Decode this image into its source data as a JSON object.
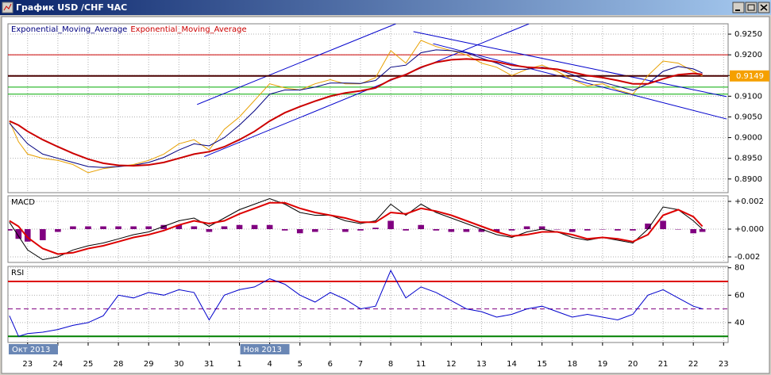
{
  "window_title": "График USD /CHF  ЧАС",
  "x_axis": {
    "x": [
      -0.6,
      -0.3,
      0,
      0.5,
      1,
      1.5,
      2,
      2.5,
      3,
      3.5,
      4,
      4.5,
      5,
      5.5,
      6,
      6.5,
      7,
      7.5,
      8,
      8.5,
      9,
      9.5,
      10,
      10.5,
      11,
      11.5,
      12,
      12.5,
      13,
      13.5,
      14,
      14.5,
      15,
      15.5,
      16,
      16.5,
      17,
      17.5,
      18,
      18.5,
      19,
      19.5,
      20,
      20.5,
      21,
      21.5,
      22,
      22.3
    ],
    "xlim": [
      -0.65,
      23.15
    ],
    "xticks": [
      {
        "value": 0,
        "label": "23"
      },
      {
        "value": 1,
        "label": "24"
      },
      {
        "value": 2,
        "label": "25"
      },
      {
        "value": 3,
        "label": "28"
      },
      {
        "value": 4,
        "label": "29"
      },
      {
        "value": 5,
        "label": "30"
      },
      {
        "value": 6,
        "label": "31"
      },
      {
        "value": 7,
        "label": "1"
      },
      {
        "value": 8,
        "label": "4"
      },
      {
        "value": 9,
        "label": "5"
      },
      {
        "value": 10,
        "label": "6"
      },
      {
        "value": 11,
        "label": "7"
      },
      {
        "value": 12,
        "label": "8"
      },
      {
        "value": 13,
        "label": "11"
      },
      {
        "value": 14,
        "label": "12"
      },
      {
        "value": 15,
        "label": "13"
      },
      {
        "value": 16,
        "label": "14"
      },
      {
        "value": 17,
        "label": "15"
      },
      {
        "value": 18,
        "label": "18"
      },
      {
        "value": 19,
        "label": "19"
      },
      {
        "value": 20,
        "label": "20"
      },
      {
        "value": 21,
        "label": "21"
      },
      {
        "value": 22,
        "label": "22"
      },
      {
        "value": 23,
        "label": "23"
      }
    ],
    "month_labels": [
      {
        "value": -0.65,
        "label": "Окт 2013"
      },
      {
        "value": 7,
        "label": "Ноя 2013"
      }
    ]
  },
  "chart_data": [
    {
      "type": "line",
      "grid": true,
      "ylim": [
        0.8867,
        0.9275
      ],
      "yticks": [
        {
          "value": 0.89,
          "label": "0.8900"
        },
        {
          "value": 0.895,
          "label": "0.8950"
        },
        {
          "value": 0.9,
          "label": "0.9000"
        },
        {
          "value": 0.905,
          "label": "0.9050"
        },
        {
          "value": 0.91,
          "label": "0.9100"
        },
        {
          "value": 0.915,
          "label": "0.9150"
        },
        {
          "value": 0.92,
          "label": "0.9200"
        },
        {
          "value": 0.925,
          "label": "0.9250"
        }
      ],
      "last_price": 0.9149,
      "series": [
        {
          "color": "#e8a000",
          "values": [
            0.904,
            0.899,
            0.896,
            0.895,
            0.8945,
            0.8935,
            0.8915,
            0.8925,
            0.893,
            0.8935,
            0.8945,
            0.896,
            0.8985,
            0.8995,
            0.897,
            0.902,
            0.905,
            0.909,
            0.913,
            0.912,
            0.9115,
            0.913,
            0.914,
            0.913,
            0.913,
            0.9145,
            0.921,
            0.918,
            0.9235,
            0.922,
            0.921,
            0.92,
            0.918,
            0.917,
            0.915,
            0.9165,
            0.9175,
            0.916,
            0.914,
            0.9125,
            0.913,
            0.9115,
            0.9105,
            0.915,
            0.9185,
            0.918,
            0.916,
            0.9149
          ]
        },
        {
          "name": "Exponential_Moving_Average",
          "color": "#000080",
          "values": [
            0.9035,
            0.901,
            0.8985,
            0.896,
            0.895,
            0.894,
            0.893,
            0.8928,
            0.893,
            0.8933,
            0.894,
            0.8952,
            0.897,
            0.8985,
            0.898,
            0.9,
            0.903,
            0.9065,
            0.9105,
            0.9115,
            0.9115,
            0.9122,
            0.9132,
            0.9132,
            0.9131,
            0.9138,
            0.917,
            0.9175,
            0.9205,
            0.9212,
            0.921,
            0.9205,
            0.9192,
            0.918,
            0.9165,
            0.9165,
            0.917,
            0.9165,
            0.9152,
            0.9138,
            0.9134,
            0.9124,
            0.9114,
            0.913,
            0.916,
            0.9172,
            0.9166,
            0.9156
          ]
        },
        {
          "name": "Exponential_Moving_Average",
          "color": "#cc0000",
          "width": 2,
          "values": [
            0.904,
            0.903,
            0.9015,
            0.8995,
            0.8978,
            0.8962,
            0.8948,
            0.8938,
            0.8933,
            0.8932,
            0.8934,
            0.894,
            0.895,
            0.896,
            0.8966,
            0.8978,
            0.8995,
            0.9015,
            0.904,
            0.906,
            0.9075,
            0.9088,
            0.91,
            0.9108,
            0.9113,
            0.912,
            0.914,
            0.9152,
            0.917,
            0.9182,
            0.9188,
            0.919,
            0.9188,
            0.9183,
            0.9175,
            0.917,
            0.9168,
            0.9165,
            0.9158,
            0.915,
            0.9145,
            0.9138,
            0.913,
            0.913,
            0.9142,
            0.9152,
            0.9155,
            0.9153
          ]
        }
      ],
      "hlines": [
        {
          "value": 0.92,
          "color": "#cc0000"
        },
        {
          "value": 0.9122,
          "color": "#00aa00"
        },
        {
          "value": 0.9105,
          "color": "#00aa00"
        }
      ],
      "trendlines": [
        {
          "x": [
            5.6,
            12.17
          ],
          "y": [
            0.908,
            0.9275
          ],
          "color": "#0000cc"
        },
        {
          "x": [
            5.84,
            16.57
          ],
          "y": [
            0.8954,
            0.9275
          ],
          "color": "#0000cc"
        },
        {
          "x": [
            12.75,
            23.1
          ],
          "y": [
            0.9256,
            0.9099
          ],
          "color": "#0000cc"
        },
        {
          "x": [
            13.4,
            23.1
          ],
          "y": [
            0.9227,
            0.9045
          ],
          "color": "#0000cc"
        }
      ]
    },
    {
      "type": "line",
      "label": "MACD",
      "grid": true,
      "ylim": [
        -0.0024,
        0.0024
      ],
      "yticks": [
        {
          "value": 0.002,
          "label": "+0.002"
        },
        {
          "value": 0,
          "label": "+0.000"
        },
        {
          "value": -0.002,
          "label": "-0.002"
        }
      ],
      "series": [
        {
          "type": "bar",
          "color": "#800080",
          "values": [
            -0.0001,
            -0.0007,
            -0.0009,
            -0.0008,
            -0.0002,
            0.0002,
            0.0002,
            0.0002,
            0.0002,
            0.0002,
            0.0002,
            0.0003,
            0.0003,
            0.0002,
            -0.0002,
            0.0002,
            0.0003,
            0.0003,
            0.0003,
            -0.0001,
            -0.0003,
            -0.0002,
            0,
            -0.0002,
            -0.0001,
            0.0001,
            0.0006,
            -0.0001,
            0.0003,
            -0.0001,
            -0.0002,
            -0.0002,
            -0.0002,
            -0.0002,
            -0.0001,
            0.0002,
            0.0002,
            0,
            -0.0002,
            -0.0001,
            0,
            -0.0001,
            -0.0001,
            0.0004,
            0.0006,
            0,
            -0.0003,
            -0.0002
          ]
        },
        {
          "color": "#000000",
          "values": [
            0.0005,
            -0.0005,
            -0.0015,
            -0.0022,
            -0.002,
            -0.0015,
            -0.0012,
            -0.001,
            -0.0007,
            -0.0004,
            -0.0002,
            0.0002,
            0.0006,
            0.0008,
            0.0002,
            0.0008,
            0.0014,
            0.0018,
            0.0022,
            0.0018,
            0.0012,
            0.001,
            0.001,
            0.0006,
            0.0004,
            0.0006,
            0.0018,
            0.001,
            0.0018,
            0.0012,
            0.0008,
            0.0004,
            0,
            -0.0004,
            -0.0006,
            -0.0002,
            0,
            -0.0002,
            -0.0006,
            -0.0008,
            -0.0006,
            -0.0008,
            -0.001,
            0,
            0.0016,
            0.0014,
            0.0006,
            0
          ]
        },
        {
          "color": "#dd0000",
          "width": 2,
          "values": [
            0.0006,
            0.0002,
            -0.0006,
            -0.0014,
            -0.0018,
            -0.0017,
            -0.0014,
            -0.0012,
            -0.0009,
            -0.0006,
            -0.0004,
            -0.0001,
            0.0003,
            0.0006,
            0.0004,
            0.0006,
            0.0011,
            0.0015,
            0.0019,
            0.0019,
            0.0015,
            0.0012,
            0.001,
            0.0008,
            0.0005,
            0.0005,
            0.0012,
            0.0011,
            0.0015,
            0.0013,
            0.001,
            0.0006,
            0.0002,
            -0.0002,
            -0.0005,
            -0.0004,
            -0.0002,
            -0.0002,
            -0.0004,
            -0.0007,
            -0.0006,
            -0.0007,
            -0.0009,
            -0.0004,
            0.001,
            0.0014,
            0.0009,
            0.0002
          ]
        }
      ]
    },
    {
      "type": "line",
      "label": "RSI",
      "grid": true,
      "ylim": [
        25.5,
        81
      ],
      "yticks": [
        40,
        60,
        80
      ],
      "levels": [
        {
          "value": 70,
          "color": "#dd0000"
        },
        {
          "value": 50,
          "color": "#800080",
          "dashed": true
        },
        {
          "value": 30,
          "color": "#008000"
        }
      ],
      "series": [
        {
          "color": "#0000cc",
          "values": [
            45,
            30,
            32,
            33,
            35,
            38,
            40,
            45,
            60,
            58,
            62,
            60,
            64,
            62,
            42,
            60,
            64,
            66,
            72,
            68,
            60,
            55,
            62,
            57,
            50,
            52,
            78,
            58,
            66,
            62,
            56,
            50,
            48,
            44,
            46,
            50,
            52,
            48,
            44,
            46,
            44,
            42,
            46,
            60,
            64,
            58,
            52,
            50
          ]
        }
      ]
    }
  ]
}
